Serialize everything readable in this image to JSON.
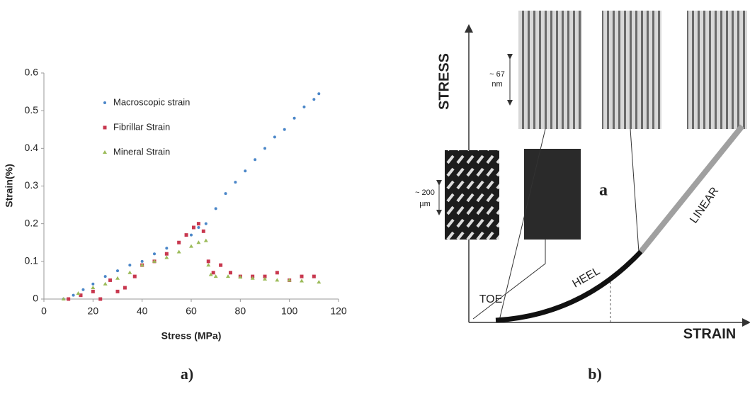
{
  "chart_data": {
    "type": "scatter",
    "x_label": "Stress (MPa)",
    "y_label": "Strain(%)",
    "xlim": [
      0,
      120
    ],
    "xticks": [
      0,
      20,
      40,
      60,
      80,
      100,
      120
    ],
    "ylim": [
      0,
      0.6
    ],
    "yticks": [
      0,
      0.1,
      0.2,
      0.3,
      0.4,
      0.5,
      0.6
    ],
    "series": [
      {
        "name": "Macroscopic strain",
        "color": "#4a86c8",
        "x": [
          8,
          12,
          16,
          20,
          25,
          30,
          35,
          40,
          45,
          50,
          55,
          60,
          63,
          66,
          70,
          74,
          78,
          82,
          86,
          90,
          94,
          98,
          102,
          106,
          110,
          112
        ],
        "values": [
          0,
          0.01,
          0.025,
          0.04,
          0.06,
          0.075,
          0.09,
          0.1,
          0.12,
          0.135,
          0.15,
          0.17,
          0.19,
          0.2,
          0.24,
          0.28,
          0.31,
          0.34,
          0.37,
          0.4,
          0.43,
          0.45,
          0.48,
          0.51,
          0.53,
          0.545
        ]
      },
      {
        "name": "Fibrillar Strain",
        "color": "#c8384f",
        "x": [
          10,
          15,
          20,
          23,
          27,
          30,
          33,
          37,
          40,
          45,
          50,
          55,
          58,
          61,
          63,
          65,
          67,
          69,
          72,
          76,
          80,
          85,
          90,
          95,
          100,
          105,
          110
        ],
        "values": [
          0,
          0.01,
          0.02,
          0,
          0.05,
          0.02,
          0.03,
          0.06,
          0.09,
          0.1,
          0.12,
          0.15,
          0.17,
          0.19,
          0.2,
          0.18,
          0.1,
          0.07,
          0.09,
          0.07,
          0.06,
          0.06,
          0.06,
          0.07,
          0.05,
          0.06,
          0.06
        ]
      },
      {
        "name": "Mineral Strain",
        "color": "#9bbb59",
        "x": [
          8,
          14,
          20,
          25,
          30,
          35,
          40,
          45,
          50,
          55,
          60,
          63,
          66,
          67,
          68,
          70,
          75,
          80,
          85,
          90,
          95,
          100,
          105,
          112
        ],
        "values": [
          0,
          0.015,
          0.03,
          0.04,
          0.055,
          0.07,
          0.09,
          0.1,
          0.11,
          0.125,
          0.14,
          0.15,
          0.155,
          0.09,
          0.065,
          0.06,
          0.06,
          0.058,
          0.055,
          0.053,
          0.05,
          0.05,
          0.048,
          0.045
        ]
      }
    ]
  },
  "diagram": {
    "y_axis": "STRESS",
    "x_axis": "STRAIN",
    "regions": [
      "TOE",
      "HEEL",
      "LINEAR"
    ],
    "panel_letter": "a",
    "fibril_scale": [
      "~ 67",
      "nm"
    ],
    "fiber_scale": [
      "~ 200",
      "µm"
    ]
  },
  "captions": [
    "a)",
    "b)"
  ]
}
